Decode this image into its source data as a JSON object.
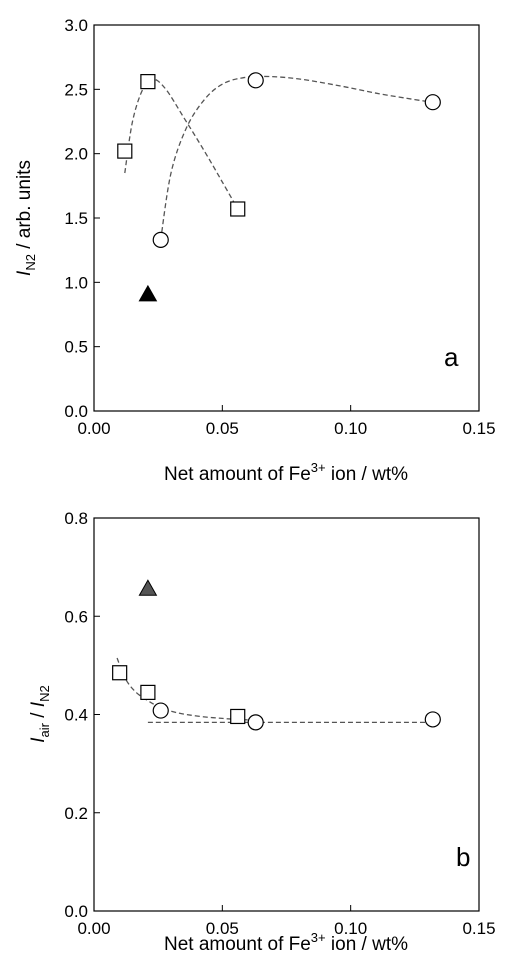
{
  "chart_data": [
    {
      "type": "scatter",
      "panel_label": "a",
      "xlabel": {
        "pre": "Net amount of Fe",
        "sup": "3+",
        "post": " ion / wt%"
      },
      "ylabel": {
        "italic": "I",
        "sub": "N2",
        "post": " / arb. units"
      },
      "xlim": [
        0,
        0.15
      ],
      "ylim": [
        0,
        3.0
      ],
      "x_ticks": [
        "0.00",
        "0.05",
        "0.10",
        "0.15"
      ],
      "y_ticks": [
        "0.0",
        "0.5",
        "1.0",
        "1.5",
        "2.0",
        "2.5",
        "3.0"
      ],
      "grid": false,
      "series": [
        {
          "marker": "square",
          "x": [
            0.012,
            0.021,
            0.056
          ],
          "y": [
            2.02,
            2.56,
            1.57
          ],
          "fit_curve": {
            "x": [
              0.012,
              0.015,
              0.019,
              0.023,
              0.028,
              0.035,
              0.043,
              0.05,
              0.056
            ],
            "y": [
              1.85,
              2.25,
              2.5,
              2.58,
              2.5,
              2.28,
              2.02,
              1.78,
              1.57
            ]
          }
        },
        {
          "marker": "circle",
          "x": [
            0.026,
            0.063,
            0.132
          ],
          "y": [
            1.33,
            2.57,
            2.4
          ],
          "fit_curve": {
            "x": [
              0.026,
              0.03,
              0.036,
              0.043,
              0.05,
              0.058,
              0.068,
              0.08,
              0.095,
              0.11,
              0.125,
              0.132
            ],
            "y": [
              1.33,
              1.85,
              2.2,
              2.42,
              2.54,
              2.59,
              2.6,
              2.58,
              2.53,
              2.47,
              2.42,
              2.4
            ]
          }
        },
        {
          "marker": "triangle-filled",
          "color": "#000000",
          "x": [
            0.021
          ],
          "y": [
            0.91
          ]
        }
      ]
    },
    {
      "type": "scatter",
      "panel_label": "b",
      "xlabel": {
        "pre": "Net amount of Fe",
        "sup": "3+",
        "post": " ion / wt%"
      },
      "ylabel": {
        "italic": "I",
        "sub": "air",
        "mid": " / ",
        "italic2": "I",
        "sub2": "N2"
      },
      "xlim": [
        0,
        0.15
      ],
      "ylim": [
        0,
        0.8
      ],
      "x_ticks": [
        "0.00",
        "0.05",
        "0.10",
        "0.15"
      ],
      "y_ticks": [
        "0.0",
        "0.2",
        "0.4",
        "0.6",
        "0.8"
      ],
      "grid": false,
      "series": [
        {
          "marker": "square",
          "x": [
            0.01,
            0.021,
            0.056
          ],
          "y": [
            0.485,
            0.445,
            0.396
          ]
        },
        {
          "marker": "circle",
          "x": [
            0.026,
            0.063,
            0.132
          ],
          "y": [
            0.408,
            0.384,
            0.39
          ]
        },
        {
          "marker": "triangle-filled",
          "color": "#555555",
          "x": [
            0.021
          ],
          "y": [
            0.657
          ]
        },
        {
          "marker": "none",
          "fit_curve": {
            "x": [
              0.009,
              0.012,
              0.016,
              0.021,
              0.026,
              0.032,
              0.04,
              0.05,
              0.06
            ],
            "y": [
              0.515,
              0.475,
              0.447,
              0.428,
              0.414,
              0.404,
              0.397,
              0.392,
              0.389
            ]
          }
        },
        {
          "marker": "none",
          "fit_curve": {
            "x": [
              0.021,
              0.132
            ],
            "y": [
              0.384,
              0.384
            ]
          }
        }
      ]
    }
  ]
}
